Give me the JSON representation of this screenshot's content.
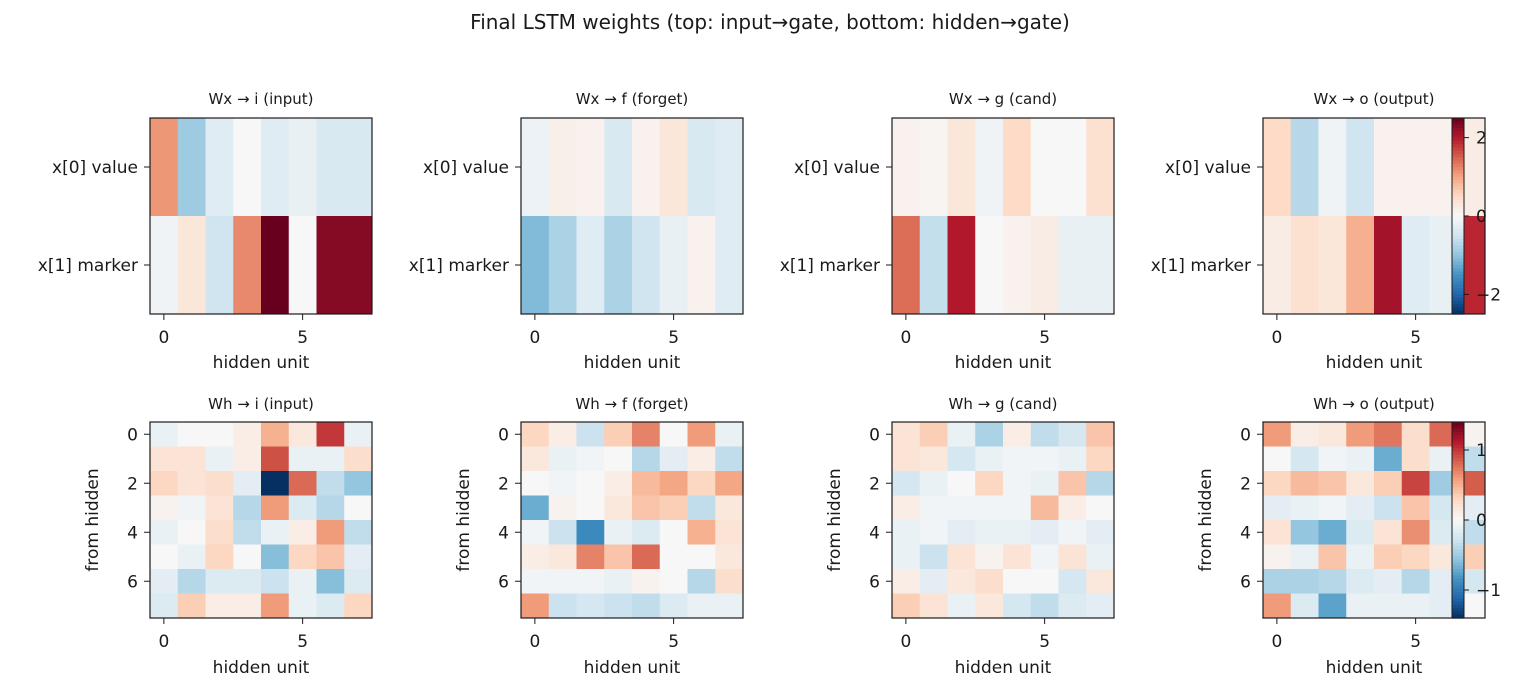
{
  "suptitle": "Final LSTM weights (top: input→gate, bottom: hidden→gate)",
  "chart_data": {
    "type": "heatmap",
    "colormap": "RdBu_r",
    "rows": [
      {
        "kind": "input",
        "vlim": [
          -2.5,
          2.5
        ],
        "colorbar_ticks": [
          -2,
          0,
          2
        ],
        "colorbar_tick_labels": [
          "−2",
          "0",
          "2"
        ],
        "xlabel": "hidden unit",
        "ylabel": "",
        "xticks": [
          0,
          5
        ],
        "yticks": [
          0,
          1
        ],
        "ytick_labels": [
          "x[0] value",
          "x[1] marker"
        ],
        "panels": [
          {
            "title": "Wx → i (input)",
            "values": [
              [
                1.1,
                -0.9,
                -0.3,
                0.0,
                -0.3,
                -0.2,
                -0.4,
                -0.4
              ],
              [
                -0.1,
                0.3,
                -0.5,
                1.2,
                2.5,
                0.0,
                2.3,
                2.3
              ]
            ]
          },
          {
            "title": "Wx → f (forget)",
            "values": [
              [
                -0.15,
                0.15,
                0.1,
                -0.4,
                0.1,
                0.3,
                -0.4,
                -0.3
              ],
              [
                -1.1,
                -0.8,
                -0.3,
                -0.8,
                -0.5,
                -0.2,
                0.1,
                -0.3
              ]
            ]
          },
          {
            "title": "Wx → g (cand)",
            "values": [
              [
                0.1,
                0.05,
                0.3,
                -0.1,
                0.5,
                0.0,
                0.0,
                0.4
              ],
              [
                1.4,
                -0.6,
                2.0,
                0.0,
                0.1,
                0.2,
                -0.2,
                -0.2
              ]
            ]
          },
          {
            "title": "Wx → o (output)",
            "values": [
              [
                0.5,
                -0.7,
                -0.1,
                -0.5,
                0.1,
                0.1,
                0.1,
                0.2
              ],
              [
                0.2,
                0.4,
                0.3,
                0.9,
                2.1,
                -0.3,
                -0.2,
                1.9
              ]
            ]
          }
        ]
      },
      {
        "kind": "hidden",
        "vlim": [
          -1.4,
          1.4
        ],
        "colorbar_ticks": [
          -1,
          0,
          1
        ],
        "colorbar_tick_labels": [
          "−1",
          "0",
          "1"
        ],
        "xlabel": "hidden unit",
        "ylabel": "from hidden",
        "xticks": [
          0,
          5
        ],
        "yticks": [
          0,
          2,
          4,
          6
        ],
        "ytick_labels": [
          "0",
          "2",
          "4",
          "6"
        ],
        "panels": [
          {
            "title": "Wh → i (input)",
            "values": [
              [
                -0.1,
                0.0,
                0.0,
                0.1,
                0.5,
                0.15,
                1.0,
                -0.1
              ],
              [
                0.2,
                0.2,
                -0.1,
                0.1,
                0.9,
                -0.1,
                -0.1,
                0.25
              ],
              [
                0.3,
                0.2,
                0.25,
                -0.15,
                -1.4,
                0.8,
                -0.35,
                -0.55
              ],
              [
                0.05,
                -0.05,
                0.2,
                -0.4,
                0.6,
                -0.2,
                -0.4,
                0.0
              ],
              [
                -0.1,
                0.0,
                0.25,
                -0.35,
                -0.1,
                0.1,
                0.6,
                -0.35
              ],
              [
                0.0,
                -0.1,
                0.3,
                0.0,
                -0.6,
                0.3,
                0.4,
                -0.15
              ],
              [
                -0.15,
                -0.4,
                -0.2,
                -0.2,
                -0.3,
                -0.1,
                -0.6,
                -0.2
              ],
              [
                -0.2,
                0.35,
                0.1,
                0.1,
                0.6,
                -0.1,
                -0.2,
                0.3
              ]
            ]
          },
          {
            "title": "Wh → f (forget)",
            "values": [
              [
                0.3,
                0.1,
                -0.3,
                0.35,
                0.7,
                0.0,
                0.6,
                -0.1
              ],
              [
                0.15,
                -0.1,
                -0.05,
                0.0,
                -0.4,
                -0.15,
                0.1,
                -0.35
              ],
              [
                0.0,
                -0.05,
                0.0,
                0.1,
                0.45,
                0.55,
                0.3,
                0.55
              ],
              [
                -0.7,
                0.05,
                0.0,
                0.15,
                0.4,
                0.35,
                -0.35,
                0.15
              ],
              [
                -0.05,
                -0.3,
                -0.9,
                -0.1,
                -0.2,
                0.0,
                0.5,
                0.2
              ],
              [
                0.1,
                0.15,
                0.7,
                0.4,
                0.8,
                0.0,
                0.0,
                0.15
              ],
              [
                -0.05,
                -0.05,
                -0.05,
                -0.1,
                0.05,
                0.0,
                -0.4,
                0.25
              ],
              [
                0.6,
                -0.3,
                -0.25,
                -0.3,
                -0.35,
                -0.2,
                -0.1,
                -0.1
              ]
            ]
          },
          {
            "title": "Wh → g (cand)",
            "values": [
              [
                0.2,
                0.35,
                -0.1,
                -0.45,
                0.1,
                -0.35,
                -0.25,
                0.4
              ],
              [
                0.2,
                0.15,
                -0.25,
                -0.1,
                -0.05,
                -0.05,
                -0.1,
                0.3
              ],
              [
                -0.25,
                -0.1,
                0.0,
                0.3,
                -0.05,
                -0.1,
                0.4,
                -0.4
              ],
              [
                0.1,
                -0.05,
                -0.05,
                -0.05,
                -0.05,
                0.45,
                0.1,
                0.0
              ],
              [
                -0.1,
                -0.05,
                -0.15,
                -0.1,
                -0.1,
                -0.15,
                -0.05,
                -0.15
              ],
              [
                -0.1,
                -0.3,
                0.2,
                0.05,
                0.2,
                -0.05,
                0.2,
                -0.1
              ],
              [
                0.1,
                -0.15,
                0.15,
                0.25,
                0.0,
                0.0,
                -0.25,
                0.15
              ],
              [
                0.35,
                0.2,
                -0.1,
                0.15,
                -0.25,
                -0.35,
                -0.2,
                -0.15
              ]
            ]
          },
          {
            "title": "Wh → o (output)",
            "values": [
              [
                0.6,
                0.1,
                0.15,
                0.6,
                0.75,
                0.25,
                0.8,
                0.05
              ],
              [
                0.0,
                -0.25,
                -0.05,
                -0.1,
                -0.7,
                0.25,
                -0.1,
                -0.35
              ],
              [
                0.3,
                0.45,
                0.4,
                0.15,
                0.35,
                0.95,
                -0.5,
                0.85
              ],
              [
                -0.15,
                -0.1,
                -0.05,
                -0.15,
                -0.3,
                0.4,
                -0.25,
                -0.15
              ],
              [
                0.2,
                -0.55,
                -0.7,
                -0.2,
                0.2,
                0.65,
                -0.2,
                -0.35
              ],
              [
                0.05,
                -0.1,
                0.4,
                -0.1,
                0.35,
                0.3,
                0.15,
                0.35
              ],
              [
                -0.45,
                -0.45,
                -0.4,
                -0.2,
                -0.15,
                -0.4,
                -0.15,
                -0.25
              ],
              [
                0.6,
                -0.2,
                -0.75,
                -0.1,
                -0.1,
                -0.1,
                -0.15,
                0.0
              ]
            ]
          }
        ]
      }
    ]
  }
}
